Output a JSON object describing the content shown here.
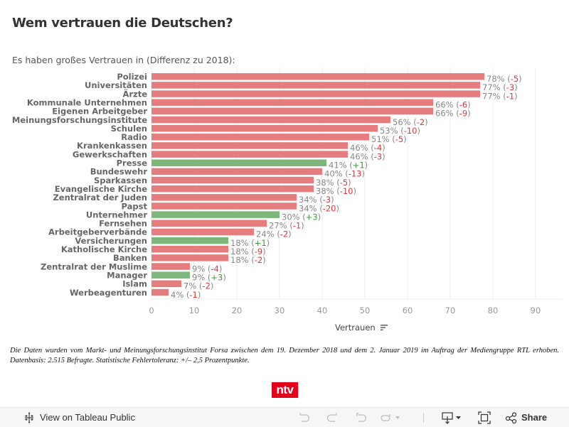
{
  "title": "Wem vertrauen die Deutschen?",
  "subtitle": "Es haben großes Vertrauen in (Differenz zu 2018):",
  "colors": {
    "negative": "#e57c7e",
    "positive": "#7db77a",
    "neg_text": "#e2353c",
    "pos_text": "#3d9a3a"
  },
  "chart_data": {
    "type": "bar",
    "orientation": "horizontal",
    "title": "Wem vertrauen die Deutschen?",
    "subtitle": "Es haben großes Vertrauen in (Differenz zu 2018):",
    "xlabel": "Vertrauen",
    "ylabel": "",
    "xlim": [
      0,
      95
    ],
    "xticks": [
      0,
      10,
      20,
      30,
      40,
      50,
      60,
      70,
      80,
      90
    ],
    "grid": true,
    "legend": "none",
    "categories": [
      "Polizei",
      "Universitäten",
      "Ärzte",
      "Kommunale Unternehmen",
      "Eigenen Arbeitgeber",
      "Meinungsforschungsinstitute",
      "Schulen",
      "Radio",
      "Krankenkassen",
      "Gewerkschaften",
      "Presse",
      "Bundeswehr",
      "Sparkassen",
      "Evangelische Kirche",
      "Zentralrat der Juden",
      "Papst",
      "Unternehmer",
      "Fernsehen",
      "Arbeitgeberverbände",
      "Versicherungen",
      "Katholische Kirche",
      "Banken",
      "Zentralrat der Muslime",
      "Manager",
      "Islam",
      "Werbeagenturen"
    ],
    "values": [
      78,
      77,
      77,
      66,
      66,
      56,
      53,
      51,
      46,
      46,
      41,
      40,
      38,
      38,
      34,
      34,
      30,
      27,
      24,
      18,
      18,
      18,
      9,
      9,
      7,
      4
    ],
    "diff_2018": [
      -5,
      -3,
      -1,
      -6,
      -9,
      -2,
      -10,
      -5,
      -4,
      -3,
      1,
      -13,
      -5,
      -10,
      -3,
      -20,
      3,
      -1,
      -2,
      1,
      -9,
      -2,
      -4,
      3,
      -2,
      -1
    ],
    "unit": "%"
  },
  "axis": {
    "title": "Vertrauen"
  },
  "footnote": "Die Daten wurden vom Markt- und Meinungsforschungsinstitut Forsa zwischen dem 19. Dezember 2018 und dem 2. Januar 2019 im Auftrag der Mediengruppe RTL erhoben. Datenbasis: 2.515 Befragte. Statistische Fehlertoleranz: +/– 2,5 Prozentpunkte.",
  "logo": {
    "text": "ntv"
  },
  "toolbar": {
    "view_label": "View on Tableau Public",
    "share_label": "Share",
    "icons": [
      "tableau-logo-icon",
      "undo-icon",
      "redo-icon",
      "revert-icon",
      "pause-icon",
      "download-icon",
      "fullscreen-icon",
      "share-icon"
    ]
  }
}
